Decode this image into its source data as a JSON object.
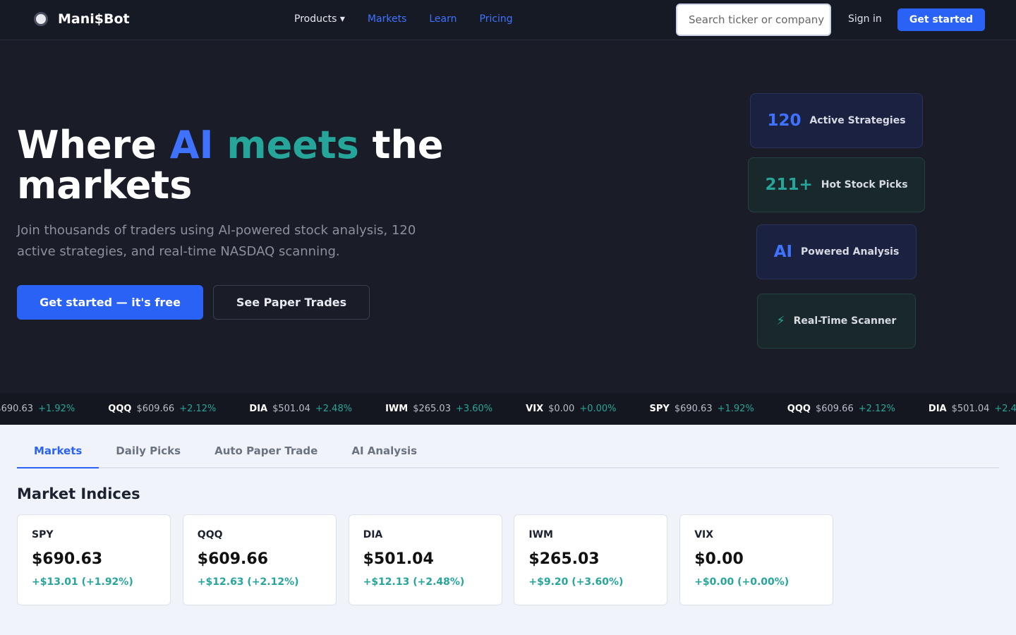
{
  "nav": {
    "brand": "Mani$Bot",
    "links": [
      "Products ▾",
      "Markets",
      "Learn",
      "Pricing"
    ],
    "search_placeholder": "Search ticker or company",
    "sign_in": "Sign in",
    "cta": "Get started"
  },
  "hero": {
    "title_start": "Where ",
    "title_highlight_1": "AI",
    "title_highlight_2": "meets",
    "title_end": " the markets",
    "subtitle": "Join thousands of traders using AI-powered stock analysis, 120 active strategies, and real-time NASDAQ scanning.",
    "primary_button": "Get started — it's free",
    "secondary_button": "See Paper Trades",
    "stats": [
      {
        "value": "120",
        "label": "Active Strategies"
      },
      {
        "value": "211+",
        "label": "Hot Stock Picks"
      },
      {
        "value": "AI",
        "label": "Powered Analysis"
      },
      {
        "value": "⚡",
        "label": "Real-Time Scanner"
      }
    ]
  },
  "ticker": [
    {
      "symbol": "SPY",
      "price": "$690.63",
      "change": "+1.92%"
    },
    {
      "symbol": "QQQ",
      "price": "$609.66",
      "change": "+2.12%"
    },
    {
      "symbol": "DIA",
      "price": "$501.04",
      "change": "+2.48%"
    },
    {
      "symbol": "IWM",
      "price": "$265.03",
      "change": "+3.60%"
    },
    {
      "symbol": "VIX",
      "price": "$0.00",
      "change": "+0.00%"
    }
  ],
  "tabs": [
    "Markets",
    "Daily Picks",
    "Auto Paper Trade",
    "AI Analysis"
  ],
  "section_title": "Market Indices",
  "indices": [
    {
      "symbol": "SPY",
      "price": "$690.63",
      "change": "+$13.01 (+1.92%)"
    },
    {
      "symbol": "QQQ",
      "price": "$609.66",
      "change": "+$12.63 (+2.12%)"
    },
    {
      "symbol": "DIA",
      "price": "$501.04",
      "change": "+$12.13 (+2.48%)"
    },
    {
      "symbol": "IWM",
      "price": "$265.03",
      "change": "+$9.20 (+3.60%)"
    },
    {
      "symbol": "VIX",
      "price": "$0.00",
      "change": "+$0.00 (+0.00%)"
    }
  ]
}
